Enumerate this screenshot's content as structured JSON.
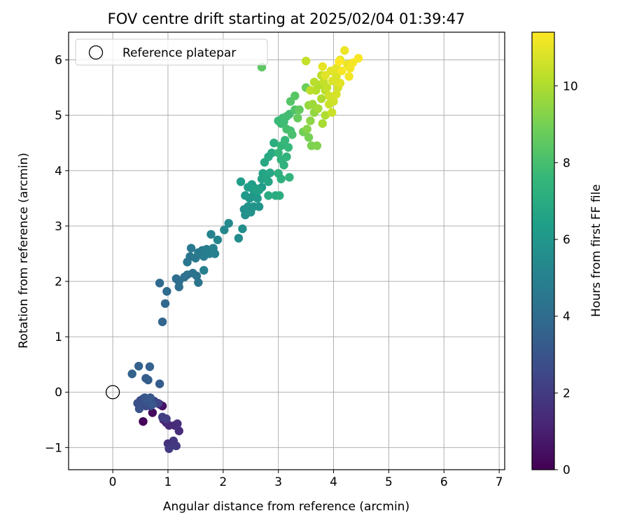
{
  "chart_data": {
    "type": "scatter",
    "title": "FOV centre drift starting at 2025/02/04 01:39:47",
    "xlabel": "Angular distance from reference (arcmin)",
    "ylabel": "Rotation from reference (arcmin)",
    "xlim": [
      -0.8,
      7.1
    ],
    "ylim": [
      -1.4,
      6.5
    ],
    "x_ticks": [
      0,
      1,
      2,
      3,
      4,
      5,
      6,
      7
    ],
    "y_ticks": [
      -1,
      0,
      1,
      2,
      3,
      4,
      5,
      6
    ],
    "grid": true,
    "legend": {
      "placement": "top-left",
      "entries": [
        "Reference platepar"
      ]
    },
    "reference_point": {
      "x": 0,
      "y": 0,
      "label": "Reference platepar"
    },
    "colorbar": {
      "label": "Hours from first FF file",
      "range": [
        0,
        11.4
      ],
      "ticks": [
        0,
        2,
        4,
        6,
        8,
        10
      ],
      "colormap": "viridis",
      "colors": [
        "#440154",
        "#482878",
        "#3e4989",
        "#31688e",
        "#26828e",
        "#1f9e89",
        "#35b779",
        "#6ece58",
        "#b5de2b",
        "#fde725"
      ]
    },
    "points": [
      [
        0.55,
        -0.53,
        0.1
      ],
      [
        0.72,
        -0.37,
        0.3
      ],
      [
        0.9,
        -0.25,
        0.5
      ],
      [
        0.85,
        -0.22,
        0.7
      ],
      [
        0.92,
        -0.5,
        1.0
      ],
      [
        0.97,
        -0.55,
        1.2
      ],
      [
        1.02,
        -0.6,
        1.3
      ],
      [
        1.12,
        -0.6,
        1.4
      ],
      [
        1.17,
        -0.57,
        1.5
      ],
      [
        1.2,
        -0.7,
        1.5
      ],
      [
        1.0,
        -0.93,
        1.6
      ],
      [
        1.05,
        -0.97,
        1.7
      ],
      [
        1.1,
        -0.88,
        1.8
      ],
      [
        1.15,
        -0.97,
        1.9
      ],
      [
        1.02,
        -1.02,
        2.0
      ],
      [
        0.97,
        -0.48,
        2.1
      ],
      [
        0.9,
        -0.45,
        2.2
      ],
      [
        0.82,
        -0.2,
        2.3
      ],
      [
        0.75,
        -0.16,
        2.4
      ],
      [
        0.68,
        -0.25,
        2.5
      ],
      [
        0.6,
        -0.25,
        2.6
      ],
      [
        0.55,
        -0.12,
        2.6
      ],
      [
        0.5,
        -0.15,
        2.7
      ],
      [
        0.45,
        -0.2,
        2.8
      ],
      [
        0.48,
        -0.3,
        2.9
      ],
      [
        0.62,
        -0.18,
        3.0
      ],
      [
        0.58,
        -0.1,
        3.1
      ],
      [
        0.72,
        -0.22,
        3.1
      ],
      [
        0.68,
        -0.1,
        3.2
      ],
      [
        0.85,
        0.15,
        3.3
      ],
      [
        0.6,
        0.25,
        3.3
      ],
      [
        0.64,
        0.22,
        3.4
      ],
      [
        0.67,
        0.46,
        3.5
      ],
      [
        0.47,
        0.47,
        3.6
      ],
      [
        0.35,
        0.33,
        3.6
      ],
      [
        0.9,
        1.27,
        3.7
      ],
      [
        0.95,
        1.6,
        3.8
      ],
      [
        0.85,
        1.97,
        3.9
      ],
      [
        0.98,
        1.82,
        4.0
      ],
      [
        1.15,
        2.05,
        4.1
      ],
      [
        1.2,
        2.0,
        4.1
      ],
      [
        1.2,
        1.9,
        4.2
      ],
      [
        1.3,
        2.08,
        4.2
      ],
      [
        1.35,
        2.12,
        4.3
      ],
      [
        1.45,
        2.15,
        4.3
      ],
      [
        1.55,
        1.98,
        4.4
      ],
      [
        1.52,
        2.1,
        4.4
      ],
      [
        1.35,
        2.35,
        4.5
      ],
      [
        1.4,
        2.45,
        4.5
      ],
      [
        1.42,
        2.6,
        4.6
      ],
      [
        1.5,
        2.42,
        4.6
      ],
      [
        1.55,
        2.52,
        4.7
      ],
      [
        1.62,
        2.56,
        4.7
      ],
      [
        1.65,
        2.45,
        4.8
      ],
      [
        1.7,
        2.58,
        4.8
      ],
      [
        1.75,
        2.5,
        4.9
      ],
      [
        1.65,
        2.2,
        4.9
      ],
      [
        1.85,
        2.5,
        5.0
      ],
      [
        1.82,
        2.6,
        5.0
      ],
      [
        1.78,
        2.85,
        5.1
      ],
      [
        1.9,
        2.75,
        5.2
      ],
      [
        2.02,
        2.93,
        5.3
      ],
      [
        2.1,
        3.05,
        5.4
      ],
      [
        2.28,
        2.78,
        5.5
      ],
      [
        2.35,
        2.95,
        5.6
      ],
      [
        2.4,
        3.2,
        5.7
      ],
      [
        2.38,
        3.3,
        5.7
      ],
      [
        2.45,
        3.35,
        5.8
      ],
      [
        2.5,
        3.25,
        5.8
      ],
      [
        2.55,
        3.35,
        5.9
      ],
      [
        2.65,
        3.35,
        5.9
      ],
      [
        2.48,
        3.5,
        6.0
      ],
      [
        2.55,
        3.55,
        6.0
      ],
      [
        2.62,
        3.5,
        6.1
      ],
      [
        2.4,
        3.55,
        6.1
      ],
      [
        2.55,
        3.65,
        6.2
      ],
      [
        2.6,
        3.6,
        6.2
      ],
      [
        2.7,
        3.7,
        6.3
      ],
      [
        2.32,
        3.8,
        6.3
      ],
      [
        2.45,
        3.7,
        6.4
      ],
      [
        2.52,
        3.75,
        6.4
      ],
      [
        2.58,
        3.68,
        6.5
      ],
      [
        2.65,
        3.65,
        6.5
      ],
      [
        2.7,
        3.85,
        6.6
      ],
      [
        2.72,
        3.95,
        6.6
      ],
      [
        2.78,
        3.88,
        6.7
      ],
      [
        2.82,
        3.8,
        6.7
      ],
      [
        2.85,
        3.96,
        6.8
      ],
      [
        2.75,
        4.15,
        6.8
      ],
      [
        2.82,
        4.25,
        6.9
      ],
      [
        2.88,
        4.32,
        6.9
      ],
      [
        2.82,
        3.55,
        7.0
      ],
      [
        2.95,
        3.55,
        7.0
      ],
      [
        3.02,
        3.55,
        7.1
      ],
      [
        2.92,
        4.5,
        7.1
      ],
      [
        3.0,
        3.95,
        7.2
      ],
      [
        3.05,
        3.85,
        7.2
      ],
      [
        3.1,
        4.1,
        7.3
      ],
      [
        3.05,
        4.2,
        7.3
      ],
      [
        3.2,
        3.88,
        7.4
      ],
      [
        3.15,
        4.25,
        7.4
      ],
      [
        3.0,
        4.32,
        7.5
      ],
      [
        3.05,
        4.45,
        7.5
      ],
      [
        3.12,
        4.55,
        7.6
      ],
      [
        3.18,
        4.42,
        7.6
      ],
      [
        3.05,
        4.85,
        7.7
      ],
      [
        3.0,
        4.9,
        7.7
      ],
      [
        3.1,
        4.88,
        7.8
      ],
      [
        3.08,
        4.95,
        7.8
      ],
      [
        3.15,
        4.98,
        7.9
      ],
      [
        3.2,
        5.02,
        7.9
      ],
      [
        3.15,
        4.75,
        8.0
      ],
      [
        3.22,
        4.72,
        8.0
      ],
      [
        3.25,
        4.65,
        8.1
      ],
      [
        3.3,
        5.1,
        8.2
      ],
      [
        3.22,
        5.25,
        8.3
      ],
      [
        3.3,
        5.35,
        8.4
      ],
      [
        2.7,
        5.87,
        8.5
      ],
      [
        3.38,
        5.1,
        8.6
      ],
      [
        3.35,
        4.95,
        8.7
      ],
      [
        3.5,
        5.5,
        8.8
      ],
      [
        3.45,
        4.7,
        8.9
      ],
      [
        3.55,
        4.6,
        9.0
      ],
      [
        3.6,
        4.45,
        9.1
      ],
      [
        3.7,
        4.45,
        9.2
      ],
      [
        3.52,
        4.75,
        9.3
      ],
      [
        3.58,
        4.9,
        9.4
      ],
      [
        3.65,
        5.05,
        9.5
      ],
      [
        3.55,
        5.18,
        9.6
      ],
      [
        3.62,
        5.2,
        9.7
      ],
      [
        3.72,
        5.12,
        9.8
      ],
      [
        3.8,
        4.85,
        9.9
      ],
      [
        3.85,
        5.0,
        10.0
      ],
      [
        3.78,
        5.3,
        10.0
      ],
      [
        3.68,
        5.45,
        10.1
      ],
      [
        3.75,
        5.55,
        10.1
      ],
      [
        3.85,
        5.45,
        10.2
      ],
      [
        3.65,
        5.6,
        10.2
      ],
      [
        3.58,
        5.45,
        10.3
      ],
      [
        3.78,
        5.72,
        10.3
      ],
      [
        3.82,
        5.6,
        10.4
      ],
      [
        3.88,
        5.5,
        10.4
      ],
      [
        3.92,
        5.2,
        10.5
      ],
      [
        3.97,
        5.05,
        10.5
      ],
      [
        3.92,
        5.35,
        10.6
      ],
      [
        4.0,
        5.25,
        10.6
      ],
      [
        4.05,
        5.38,
        10.7
      ],
      [
        4.08,
        5.5,
        10.7
      ],
      [
        3.98,
        5.62,
        10.8
      ],
      [
        4.05,
        5.7,
        10.8
      ],
      [
        3.95,
        5.8,
        10.9
      ],
      [
        4.12,
        5.58,
        10.9
      ],
      [
        4.05,
        5.85,
        11.0
      ],
      [
        4.12,
        6.0,
        11.0
      ],
      [
        4.2,
        6.17,
        11.1
      ],
      [
        4.25,
        5.92,
        11.1
      ],
      [
        4.28,
        5.7,
        11.2
      ],
      [
        4.3,
        5.85,
        11.2
      ],
      [
        4.35,
        5.95,
        11.3
      ],
      [
        4.45,
        6.03,
        11.3
      ],
      [
        4.15,
        5.8,
        11.3
      ],
      [
        3.8,
        5.88,
        11.0
      ],
      [
        3.5,
        5.98,
        10.4
      ],
      [
        3.85,
        5.72,
        10.9
      ],
      [
        4.1,
        5.97,
        11.4
      ]
    ]
  }
}
